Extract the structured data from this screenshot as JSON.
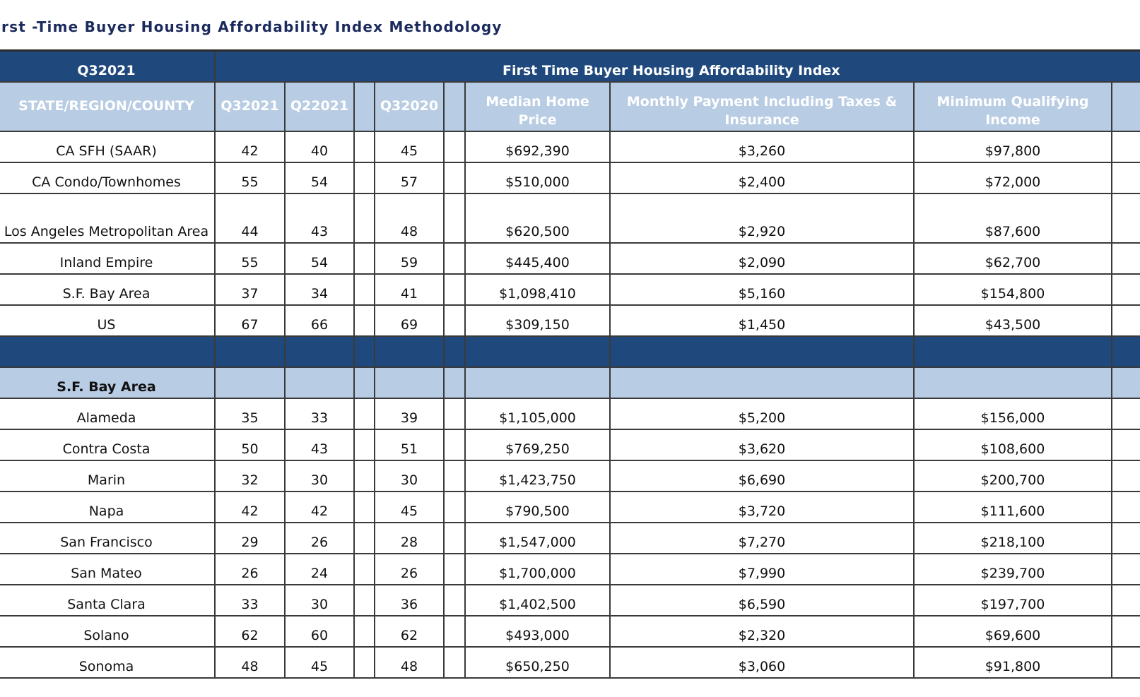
{
  "title": "irst -Time Buyer Housing Affordability Index Methodology",
  "header": {
    "period_label": "Q32021",
    "index_label": "First Time Buyer Housing Affordability Index"
  },
  "columns": [
    "STATE/REGION/COUNTY",
    "Q32021",
    "Q22021",
    "",
    "Q32020",
    "",
    "Median Home Price",
    "Monthly Payment Including Taxes & Insurance",
    "Minimum Qualifying Income"
  ],
  "summary_rows": [
    {
      "name": "CA SFH (SAAR)",
      "q32021": "42",
      "q22021": "40",
      "q32020": "45",
      "price": "$692,390",
      "payment": "$3,260",
      "income": "$97,800"
    },
    {
      "name": "CA Condo/Townhomes",
      "q32021": "55",
      "q22021": "54",
      "q32020": "57",
      "price": "$510,000",
      "payment": "$2,400",
      "income": "$72,000"
    },
    {
      "name": "Los Angeles Metropolitan Area",
      "q32021": "44",
      "q22021": "43",
      "q32020": "48",
      "price": "$620,500",
      "payment": "$2,920",
      "income": "$87,600"
    },
    {
      "name": "Inland Empire",
      "q32021": "55",
      "q22021": "54",
      "q32020": "59",
      "price": "$445,400",
      "payment": "$2,090",
      "income": "$62,700"
    },
    {
      "name": "S.F. Bay Area",
      "q32021": "37",
      "q22021": "34",
      "q32020": "41",
      "price": "$1,098,410",
      "payment": "$5,160",
      "income": "$154,800"
    },
    {
      "name": "US",
      "q32021": "67",
      "q22021": "66",
      "q32020": "69",
      "price": "$309,150",
      "payment": "$1,450",
      "income": "$43,500"
    }
  ],
  "section_title": "S.F. Bay Area",
  "bay_area_rows": [
    {
      "name": "Alameda",
      "q32021": "35",
      "q22021": "33",
      "q32020": "39",
      "price": "$1,105,000",
      "payment": "$5,200",
      "income": "$156,000"
    },
    {
      "name": "Contra Costa",
      "q32021": "50",
      "q22021": "43",
      "q32020": "51",
      "price": "$769,250",
      "payment": "$3,620",
      "income": "$108,600"
    },
    {
      "name": "Marin",
      "q32021": "32",
      "q22021": "30",
      "q32020": "30",
      "price": "$1,423,750",
      "payment": "$6,690",
      "income": "$200,700"
    },
    {
      "name": "Napa",
      "q32021": "42",
      "q22021": "42",
      "q32020": "45",
      "price": "$790,500",
      "payment": "$3,720",
      "income": "$111,600"
    },
    {
      "name": "San Francisco",
      "q32021": "29",
      "q22021": "26",
      "q32020": "28",
      "price": "$1,547,000",
      "payment": "$7,270",
      "income": "$218,100"
    },
    {
      "name": "San Mateo",
      "q32021": "26",
      "q22021": "24",
      "q32020": "26",
      "price": "$1,700,000",
      "payment": "$7,990",
      "income": "$239,700"
    },
    {
      "name": "Santa Clara",
      "q32021": "33",
      "q22021": "30",
      "q32020": "36",
      "price": "$1,402,500",
      "payment": "$6,590",
      "income": "$197,700"
    },
    {
      "name": "Solano",
      "q32021": "62",
      "q22021": "60",
      "q32020": "62",
      "price": "$493,000",
      "payment": "$2,320",
      "income": "$69,600"
    },
    {
      "name": "Sonoma",
      "q32021": "48",
      "q22021": "45",
      "q32020": "48",
      "price": "$650,250",
      "payment": "$3,060",
      "income": "$91,800"
    }
  ],
  "colors": {
    "header_dark": "#1f497d",
    "header_light": "#b8cce4",
    "title_text": "#1b2a5c"
  }
}
